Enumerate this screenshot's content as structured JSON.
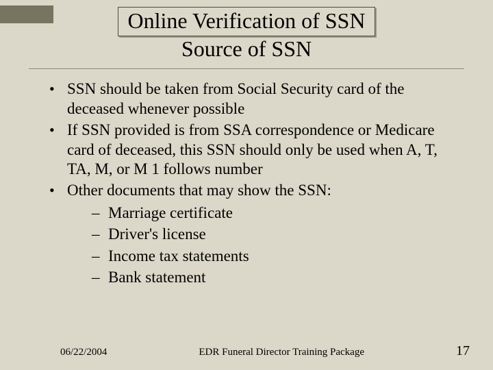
{
  "colors": {
    "background": "#dbd8c9",
    "accent_bar": "#777460",
    "text": "#000000",
    "rule_top": "#7a7866",
    "rule_bottom": "#efeee4",
    "title_border": "#4a4a3a",
    "title_shadow": "rgba(80,78,64,0.45)"
  },
  "typography": {
    "family": "Times New Roman",
    "title_size_pt": 32,
    "body_size_pt": 23,
    "footer_size_pt": 15,
    "page_num_size_pt": 20
  },
  "title": {
    "line1": "Online Verification of SSN",
    "line2": "Source of SSN"
  },
  "bullets": [
    {
      "text": "SSN should be taken from Social Security card of the deceased whenever possible"
    },
    {
      "text": "If SSN provided is from SSA correspondence or Medicare card of deceased, this SSN should only be used when A, T, TA, M, or M 1 follows number"
    },
    {
      "text": "Other documents that may show the SSN:",
      "sub": [
        "Marriage certificate",
        "Driver's license",
        "Income tax statements",
        "Bank statement"
      ]
    }
  ],
  "footer": {
    "date": "06/22/2004",
    "package": "EDR Funeral Director Training Package",
    "page": "17"
  }
}
